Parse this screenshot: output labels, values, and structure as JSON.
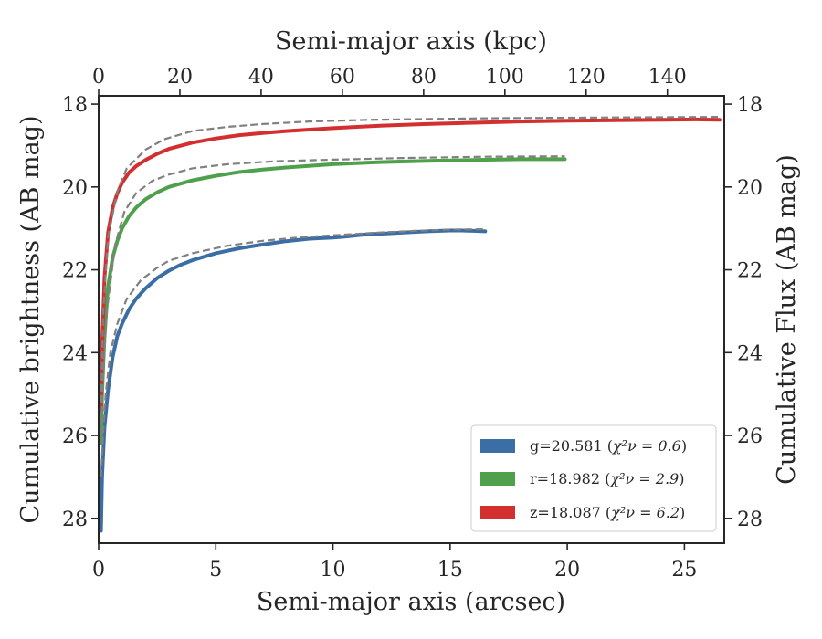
{
  "chart_data": {
    "type": "line",
    "xlabel": "Semi-major axis (arcsec)",
    "x2label": "Semi-major axis (kpc)",
    "ylabel": "Cumulative brightness (AB mag)",
    "y2label": "Cumulative Flux (AB mag)",
    "xlim": [
      0,
      26.7
    ],
    "x2lim": [
      0,
      154
    ],
    "ylim": [
      28.6,
      17.8
    ],
    "y_inverted": true,
    "xticks": [
      0,
      5,
      10,
      15,
      20,
      25
    ],
    "x2ticks": [
      0,
      20,
      40,
      60,
      80,
      100,
      120,
      140
    ],
    "yticks": [
      18,
      20,
      22,
      24,
      26,
      28
    ],
    "grid": false,
    "legend_position": "lower right",
    "series": [
      {
        "name": "g",
        "legend": "g=20.581",
        "chi2_label": "χ²ν = 0.6",
        "color": "#3a6ea5",
        "x": [
          0.1,
          0.15,
          0.25,
          0.4,
          0.6,
          0.8,
          1.0,
          1.3,
          1.6,
          2.0,
          2.5,
          3.0,
          3.5,
          4.0,
          5.0,
          6.0,
          7.0,
          8.0,
          9.0,
          10.0,
          10.5,
          11.0,
          11.5,
          12.0,
          13.0,
          14.0,
          15.0,
          15.5,
          16.0,
          16.5
        ],
        "values": [
          28.3,
          27.0,
          25.8,
          24.9,
          24.1,
          23.6,
          23.3,
          22.95,
          22.7,
          22.45,
          22.2,
          22.02,
          21.88,
          21.77,
          21.6,
          21.48,
          21.39,
          21.31,
          21.25,
          21.22,
          21.2,
          21.17,
          21.14,
          21.13,
          21.1,
          21.07,
          21.05,
          21.05,
          21.06,
          21.07
        ]
      },
      {
        "name": "r",
        "legend": "r=18.982",
        "chi2_label": "χ²ν = 2.9",
        "color": "#4fa04a",
        "x": [
          0.1,
          0.15,
          0.25,
          0.4,
          0.6,
          0.8,
          1.0,
          1.3,
          1.6,
          2.0,
          2.5,
          3.0,
          4.0,
          5.0,
          6.0,
          7.0,
          8.0,
          10.0,
          12.0,
          14.0,
          16.0,
          18.0,
          19.9
        ],
        "values": [
          26.2,
          25.0,
          23.6,
          22.4,
          21.7,
          21.3,
          21.0,
          20.7,
          20.5,
          20.3,
          20.13,
          20.0,
          19.84,
          19.73,
          19.64,
          19.58,
          19.53,
          19.45,
          19.4,
          19.37,
          19.35,
          19.33,
          19.33
        ]
      },
      {
        "name": "z",
        "legend": "z=18.087",
        "chi2_label": "χ²ν = 6.2",
        "color": "#d32f2f",
        "x": [
          0.1,
          0.15,
          0.25,
          0.4,
          0.6,
          0.8,
          1.0,
          1.3,
          1.6,
          2.0,
          2.5,
          3.0,
          4.0,
          5.0,
          6.0,
          7.0,
          8.0,
          10.0,
          12.0,
          14.0,
          16.0,
          18.0,
          20.0,
          22.0,
          24.0,
          25.5,
          26.5
        ],
        "values": [
          25.4,
          23.8,
          22.2,
          21.1,
          20.5,
          20.15,
          19.9,
          19.65,
          19.5,
          19.35,
          19.2,
          19.08,
          18.93,
          18.83,
          18.75,
          18.7,
          18.65,
          18.58,
          18.52,
          18.48,
          18.45,
          18.42,
          18.4,
          18.39,
          18.38,
          18.37,
          18.38
        ]
      }
    ],
    "model_curves": {
      "style": "dashed",
      "color": "#808080",
      "g": [
        27.0,
        25.9,
        25.0,
        24.0,
        23.3,
        22.7,
        22.25,
        21.95,
        21.78,
        21.6,
        21.42,
        21.3,
        21.22,
        21.15,
        21.1,
        21.06,
        21.03,
        21.02
      ],
      "r": [
        26.0,
        24.5,
        23.0,
        21.4,
        20.6,
        20.15,
        19.85,
        19.7,
        19.55,
        19.45,
        19.38,
        19.34,
        19.3,
        19.27,
        19.26
      ],
      "z": [
        25.2,
        23.0,
        21.2,
        20.1,
        19.55,
        19.1,
        18.85,
        18.65,
        18.55,
        18.48,
        18.42,
        18.38,
        18.36,
        18.34,
        18.33,
        18.32,
        18.31
      ]
    },
    "model_x": {
      "g": [
        0.1,
        0.2,
        0.3,
        0.5,
        0.8,
        1.2,
        1.8,
        2.5,
        3.0,
        4.0,
        5.5,
        7.0,
        8.5,
        10.5,
        12.0,
        13.5,
        15.0,
        16.5
      ],
      "r": [
        0.1,
        0.2,
        0.35,
        0.7,
        1.1,
        1.6,
        2.3,
        3.0,
        4.0,
        5.5,
        7.5,
        10.0,
        13.0,
        16.5,
        19.9
      ],
      "z": [
        0.1,
        0.2,
        0.4,
        0.8,
        1.2,
        2.0,
        2.8,
        4.0,
        5.5,
        7.0,
        9.0,
        11.5,
        14.0,
        17.0,
        20.0,
        23.0,
        26.5
      ]
    }
  }
}
